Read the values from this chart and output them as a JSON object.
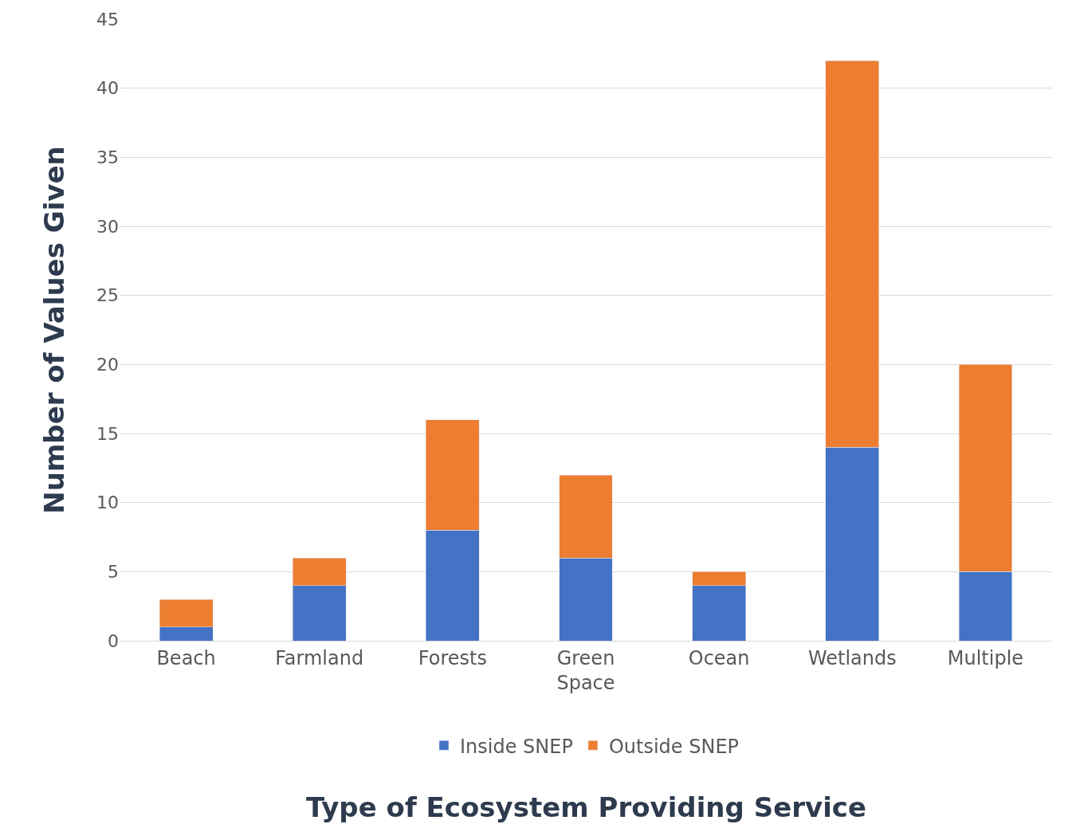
{
  "chart_data": {
    "type": "bar",
    "stacked": true,
    "xlabel": "Type of Ecosystem Providing Service",
    "ylabel": "Number of Values Given",
    "categories": [
      "Beach",
      "Farmland",
      "Forests",
      "Green Space",
      "Ocean",
      "Wetlands",
      "Multiple"
    ],
    "series": [
      {
        "name": "Inside SNEP",
        "color": "#4472c4",
        "values": [
          1,
          4,
          8,
          6,
          4,
          14,
          5
        ]
      },
      {
        "name": "Outside SNEP",
        "color": "#ed7d31",
        "values": [
          2,
          2,
          8,
          6,
          1,
          28,
          15
        ]
      }
    ],
    "ylim": [
      0,
      45
    ],
    "yticks": [
      0,
      5,
      10,
      15,
      20,
      25,
      30,
      35,
      40,
      45
    ],
    "grid": "y",
    "legend": "bottom"
  }
}
